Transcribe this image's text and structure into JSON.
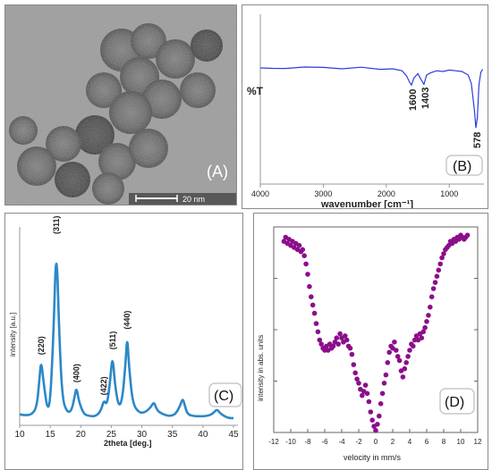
{
  "colors": {
    "ftir": "#2a3be0",
    "xrd": "#2b88c8",
    "mossbauer": "#8b0f8b",
    "label_box": "#c9c9c9"
  },
  "panel_a": {
    "label": "(A)",
    "scale_bar_text": "20 nm"
  },
  "chart_data": [
    {
      "type": "line",
      "panel": "(B)",
      "xlabel": "wavenumber [cm⁻¹]",
      "ylabel": "%T",
      "xlim": [
        4000,
        450
      ],
      "xticks": [
        4000,
        3000,
        2000,
        1000
      ],
      "annotations": [
        {
          "text": "1600",
          "x": 1600
        },
        {
          "text": "1403",
          "x": 1403
        },
        {
          "text": "578",
          "x": 578
        }
      ],
      "x": [
        4000,
        3800,
        3600,
        3300,
        3000,
        2700,
        2400,
        2100,
        1900,
        1750,
        1680,
        1630,
        1600,
        1560,
        1500,
        1450,
        1403,
        1360,
        1300,
        1200,
        1100,
        1000,
        900,
        800,
        700,
        650,
        600,
        578,
        555,
        530,
        500,
        470
      ],
      "y": [
        0.0,
        0.3,
        0.4,
        -0.6,
        -0.4,
        0.6,
        -0.5,
        1.0,
        0.6,
        2.0,
        5.5,
        10.0,
        12.0,
        7.0,
        4.0,
        8.0,
        11.5,
        5.0,
        3.5,
        2.0,
        2.5,
        1.5,
        2.0,
        2.5,
        5.0,
        11.0,
        30.0,
        42.0,
        35.0,
        12.0,
        3.0,
        1.0
      ]
    },
    {
      "type": "line",
      "panel": "(C)",
      "xlabel": "2theta [deg.]",
      "ylabel": "intensity [a.u.]",
      "xlim": [
        10,
        45
      ],
      "ylim": [
        0,
        100
      ],
      "xticks": [
        10,
        15,
        20,
        25,
        30,
        35,
        40,
        45
      ],
      "peak_labels": [
        {
          "text": "(220)",
          "x": 13.5,
          "y": 34
        },
        {
          "text": "(311)",
          "x": 16.0,
          "y": 100
        },
        {
          "text": "(400)",
          "x": 19.3,
          "y": 19
        },
        {
          "text": "(422)",
          "x": 23.8,
          "y": 12
        },
        {
          "text": "(511)",
          "x": 25.2,
          "y": 37
        },
        {
          "text": "(440)",
          "x": 27.6,
          "y": 48
        }
      ],
      "x": [
        10,
        11,
        12,
        12.8,
        13.2,
        13.5,
        13.9,
        14.5,
        15.0,
        15.5,
        16.0,
        16.5,
        17.0,
        17.8,
        18.5,
        19.0,
        19.3,
        19.7,
        20.5,
        21.5,
        22.5,
        23.3,
        23.8,
        24.3,
        24.8,
        25.2,
        25.6,
        26.2,
        26.8,
        27.3,
        27.6,
        27.9,
        28.5,
        29.5,
        30.5,
        31.5,
        32.0,
        32.5,
        33.5,
        34.5,
        35.5,
        36.3,
        36.7,
        37.1,
        37.5,
        38.5,
        39.5,
        40.5,
        41.5,
        42.3,
        42.7,
        43.5,
        44.3,
        45
      ],
      "y": [
        4,
        3.5,
        4,
        8,
        22,
        34,
        22,
        7,
        10,
        45,
        100,
        45,
        12,
        5,
        6,
        14,
        19,
        11,
        4,
        3,
        3,
        6,
        12,
        9,
        22,
        37,
        20,
        8,
        12,
        30,
        48,
        30,
        10,
        5,
        5,
        8,
        11,
        6,
        4,
        3,
        4,
        9,
        13,
        8,
        4,
        3,
        3,
        3,
        4,
        7,
        5,
        3,
        2,
        2
      ]
    },
    {
      "type": "scatter",
      "panel": "(D)",
      "xlabel": "velocity in mm/s",
      "ylabel": "intensity in abs. units",
      "xlim": [
        -12,
        12
      ],
      "ylim": [
        0,
        1.0
      ],
      "xticks": [
        -12,
        -10,
        -8,
        -6,
        -4,
        -2,
        0,
        2,
        4,
        6,
        8,
        10,
        12
      ],
      "x": [
        -10.8,
        -10.6,
        -10.4,
        -10.2,
        -10.0,
        -9.8,
        -9.6,
        -9.4,
        -9.2,
        -9.0,
        -8.8,
        -8.6,
        -8.4,
        -8.2,
        -8.0,
        -7.8,
        -7.6,
        -7.4,
        -7.2,
        -7.0,
        -6.8,
        -6.6,
        -6.4,
        -6.2,
        -6.0,
        -5.8,
        -5.6,
        -5.4,
        -5.2,
        -5.0,
        -4.8,
        -4.6,
        -4.4,
        -4.2,
        -4.0,
        -3.8,
        -3.6,
        -3.4,
        -3.2,
        -3.0,
        -2.8,
        -2.6,
        -2.4,
        -2.2,
        -2.0,
        -1.8,
        -1.6,
        -1.4,
        -1.2,
        -1.0,
        -0.8,
        -0.6,
        -0.4,
        -0.2,
        0.0,
        0.2,
        0.4,
        0.6,
        0.8,
        1.0,
        1.2,
        1.4,
        1.6,
        1.8,
        2.0,
        2.2,
        2.4,
        2.6,
        2.8,
        3.0,
        3.2,
        3.4,
        3.6,
        3.8,
        4.0,
        4.2,
        4.4,
        4.6,
        4.8,
        5.0,
        5.2,
        5.4,
        5.6,
        5.8,
        6.0,
        6.2,
        6.4,
        6.6,
        6.8,
        7.0,
        7.2,
        7.4,
        7.6,
        7.8,
        8.0,
        8.2,
        8.4,
        8.6,
        8.8,
        9.0,
        9.2,
        9.4,
        9.6,
        9.8,
        10.0,
        10.2,
        10.4,
        10.6,
        10.8
      ],
      "y": [
        0.93,
        0.95,
        0.92,
        0.94,
        0.91,
        0.93,
        0.9,
        0.92,
        0.89,
        0.91,
        0.88,
        0.89,
        0.86,
        0.82,
        0.77,
        0.71,
        0.66,
        0.62,
        0.58,
        0.53,
        0.49,
        0.45,
        0.43,
        0.41,
        0.4,
        0.42,
        0.4,
        0.43,
        0.41,
        0.42,
        0.44,
        0.46,
        0.43,
        0.48,
        0.46,
        0.44,
        0.47,
        0.45,
        0.42,
        0.41,
        0.38,
        0.33,
        0.29,
        0.26,
        0.24,
        0.21,
        0.18,
        0.2,
        0.23,
        0.19,
        0.15,
        0.1,
        0.06,
        0.03,
        0.01,
        0.04,
        0.08,
        0.14,
        0.19,
        0.24,
        0.28,
        0.34,
        0.39,
        0.42,
        0.41,
        0.44,
        0.4,
        0.37,
        0.35,
        0.3,
        0.27,
        0.31,
        0.34,
        0.37,
        0.4,
        0.43,
        0.42,
        0.45,
        0.47,
        0.45,
        0.48,
        0.46,
        0.49,
        0.51,
        0.54,
        0.57,
        0.61,
        0.66,
        0.7,
        0.73,
        0.76,
        0.79,
        0.82,
        0.85,
        0.87,
        0.89,
        0.9,
        0.91,
        0.93,
        0.92,
        0.94,
        0.93,
        0.95,
        0.94,
        0.96,
        0.95,
        0.94,
        0.95,
        0.96
      ]
    }
  ],
  "labels": {
    "b": "(B)",
    "c": "(C)",
    "d": "(D)"
  }
}
